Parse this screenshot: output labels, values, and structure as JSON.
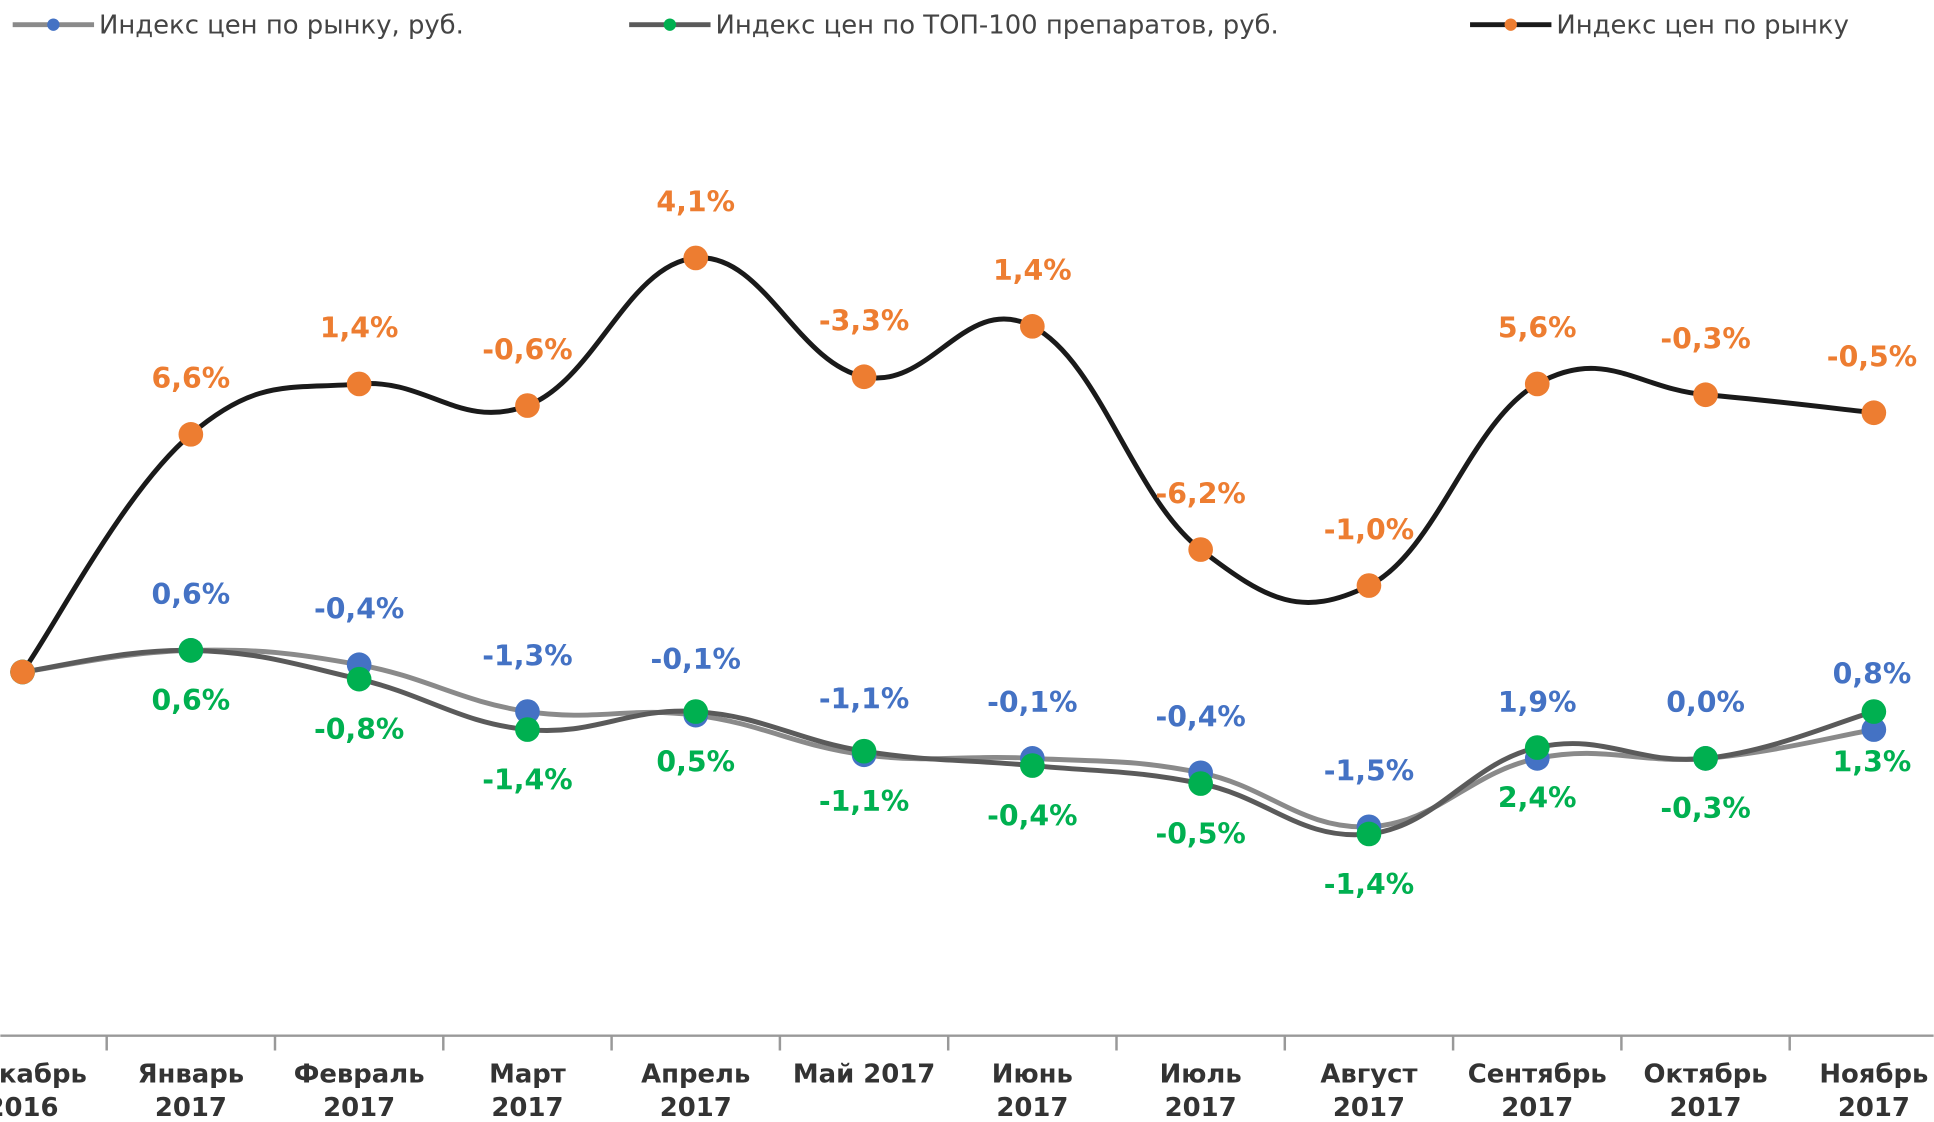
{
  "chart_data": {
    "type": "line",
    "categories": [
      [
        "Декабрь",
        "2016"
      ],
      [
        "Январь",
        "2017"
      ],
      [
        "Февраль",
        "2017"
      ],
      [
        "Март",
        "2017"
      ],
      [
        "Апрель",
        "2017"
      ],
      [
        "Май 2017"
      ],
      [
        "Июнь",
        "2017"
      ],
      [
        "Июль",
        "2017"
      ],
      [
        "Август",
        "2017"
      ],
      [
        "Сентябрь",
        "2017"
      ],
      [
        "Октябрь",
        "2017"
      ],
      [
        "Ноябрь",
        "2017"
      ]
    ],
    "series": [
      {
        "name": "Индекс цен по рынку, руб.",
        "color": "#4472c4",
        "line_color": "#8a8a8a",
        "values": [
          0,
          0.6,
          -0.4,
          -1.3,
          -0.1,
          -1.1,
          -0.1,
          -0.4,
          -1.5,
          1.9,
          0.0,
          0.8
        ],
        "value_labels": [
          null,
          "0,6%",
          "-0,4%",
          "-1,3%",
          "-0,1%",
          "-1,1%",
          "-0,1%",
          "-0,4%",
          "-1,5%",
          "1,9%",
          "0,0%",
          "0,8%"
        ]
      },
      {
        "name": "Индекс цен по ТОП-100 препаратов, руб.",
        "color": "#00b050",
        "line_color": "#5a5a5a",
        "values": [
          0,
          0.6,
          -0.8,
          -1.4,
          0.5,
          -1.1,
          -0.4,
          -0.5,
          -1.4,
          2.4,
          -0.3,
          1.3
        ],
        "value_labels": [
          null,
          "0,6%",
          "-0,8%",
          "-1,4%",
          "0,5%",
          "-1,1%",
          "-0,4%",
          "-0,5%",
          "-1,4%",
          "2,4%",
          "-0,3%",
          "1,3%"
        ]
      },
      {
        "name": "Индекс цен по рынку",
        "color": "#ed7d31",
        "line_color": "#1a1a1a",
        "values": [
          0,
          6.6,
          1.4,
          -0.6,
          4.1,
          -3.3,
          1.4,
          -6.2,
          -1.0,
          5.6,
          -0.3,
          -0.5
        ],
        "value_labels": [
          null,
          "6,6%",
          "1,4%",
          "-0,6%",
          "4,1%",
          "-3,3%",
          "1,4%",
          "-6,2%",
          "-1,0%",
          "5,6%",
          "-0,3%",
          "-0,5%"
        ]
      }
    ]
  }
}
